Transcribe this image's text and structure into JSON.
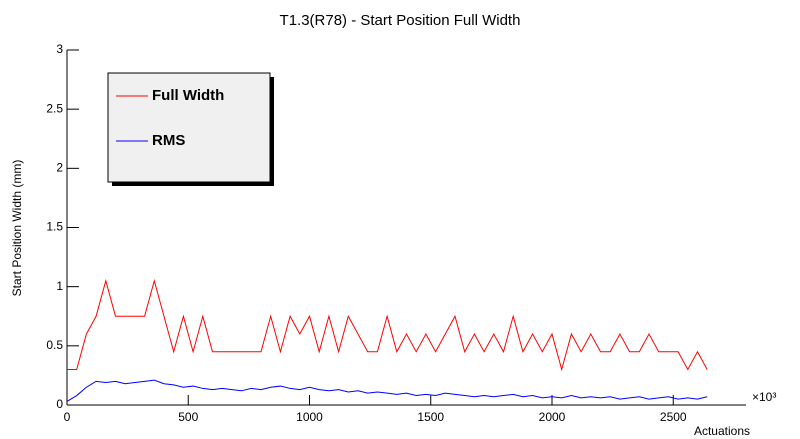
{
  "chart_data": {
    "type": "line",
    "title": "T1.3(R78) - Start Position Full Width",
    "xlabel": "Actuations",
    "ylabel": "Start Position Width (mm)",
    "x_multiplier": "×10³",
    "x": [
      0,
      40,
      80,
      120,
      160,
      200,
      240,
      280,
      320,
      360,
      400,
      440,
      480,
      520,
      560,
      600,
      640,
      680,
      720,
      760,
      800,
      840,
      880,
      920,
      960,
      1000,
      1040,
      1080,
      1120,
      1160,
      1200,
      1240,
      1280,
      1320,
      1360,
      1400,
      1440,
      1480,
      1520,
      1560,
      1600,
      1640,
      1680,
      1720,
      1760,
      1800,
      1840,
      1880,
      1920,
      1960,
      2000,
      2040,
      2080,
      2120,
      2160,
      2200,
      2240,
      2280,
      2320,
      2360,
      2400,
      2440,
      2480,
      2520,
      2560,
      2600,
      2640
    ],
    "series": [
      {
        "name": "Full Width",
        "color": "#ff0000",
        "values": [
          0.3,
          0.3,
          0.6,
          0.75,
          1.05,
          0.75,
          0.75,
          0.75,
          0.75,
          1.05,
          0.75,
          0.45,
          0.75,
          0.45,
          0.75,
          0.45,
          0.45,
          0.45,
          0.45,
          0.45,
          0.45,
          0.75,
          0.45,
          0.75,
          0.6,
          0.75,
          0.45,
          0.75,
          0.45,
          0.75,
          0.6,
          0.45,
          0.45,
          0.75,
          0.45,
          0.6,
          0.45,
          0.6,
          0.45,
          0.6,
          0.75,
          0.45,
          0.6,
          0.45,
          0.6,
          0.45,
          0.75,
          0.45,
          0.6,
          0.45,
          0.6,
          0.3,
          0.6,
          0.45,
          0.6,
          0.45,
          0.45,
          0.6,
          0.45,
          0.45,
          0.6,
          0.45,
          0.45,
          0.45,
          0.3,
          0.45,
          0.3
        ]
      },
      {
        "name": "RMS",
        "color": "#0000ff",
        "values": [
          0.03,
          0.08,
          0.15,
          0.2,
          0.19,
          0.2,
          0.18,
          0.19,
          0.2,
          0.21,
          0.18,
          0.17,
          0.15,
          0.16,
          0.14,
          0.13,
          0.14,
          0.13,
          0.12,
          0.14,
          0.13,
          0.15,
          0.16,
          0.14,
          0.13,
          0.15,
          0.13,
          0.12,
          0.13,
          0.11,
          0.12,
          0.1,
          0.11,
          0.1,
          0.09,
          0.1,
          0.08,
          0.09,
          0.08,
          0.1,
          0.09,
          0.08,
          0.07,
          0.08,
          0.07,
          0.08,
          0.09,
          0.07,
          0.08,
          0.06,
          0.07,
          0.06,
          0.08,
          0.06,
          0.07,
          0.06,
          0.07,
          0.05,
          0.06,
          0.07,
          0.05,
          0.06,
          0.07,
          0.05,
          0.06,
          0.05,
          0.07
        ]
      }
    ],
    "xlim": [
      0,
      2800
    ],
    "xticks": [
      0,
      500,
      1000,
      1500,
      2000,
      2500
    ],
    "ylim": [
      0,
      3
    ],
    "yticks": [
      0,
      0.5,
      1,
      1.5,
      2,
      2.5,
      3
    ],
    "legend": "upper left"
  }
}
